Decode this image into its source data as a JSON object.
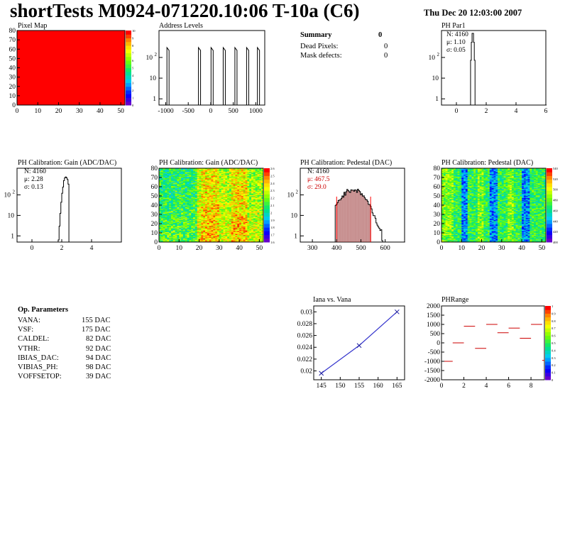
{
  "header": {
    "title": "shortTests M0924-071220.10:06 T-10a (C6)",
    "date": "Thu Dec 20 12:03:00 2007"
  },
  "panels": {
    "pixel_map": {
      "title": "Pixel Map"
    },
    "address_levels": {
      "title": "Address Levels"
    },
    "ph_par1": {
      "title": "PH Par1",
      "stats": [
        "N: 4160",
        "μ: 1.10",
        "σ: 0.05"
      ]
    },
    "gain_hist": {
      "title": "PH Calibration: Gain (ADC/DAC)",
      "stats": [
        "N: 4160",
        "μ: 2.28",
        "σ: 0.13"
      ]
    },
    "gain_map": {
      "title": "PH Calibration: Gain (ADC/DAC)"
    },
    "ped_hist": {
      "title": "PH Calibration: Pedestal (DAC)",
      "stats": [
        "N: 4160",
        "μ: 467.5",
        "σ: 29.0"
      ]
    },
    "ped_map": {
      "title": "PH Calibration: Pedestal (DAC)"
    },
    "iana": {
      "title": "Iana vs. Vana"
    },
    "phrange": {
      "title": "PHRange"
    }
  },
  "summary": {
    "heading": "Summary",
    "total": "0",
    "rows": [
      {
        "label": "Dead Pixels:",
        "value": "0"
      },
      {
        "label": "Mask defects:",
        "value": "0"
      }
    ]
  },
  "op_params": {
    "heading": "Op. Parameters",
    "rows": [
      {
        "name": "VANA:",
        "value": "155 DAC"
      },
      {
        "name": "VSF:",
        "value": "175 DAC"
      },
      {
        "name": "CALDEL:",
        "value": "82 DAC"
      },
      {
        "name": "VTHR:",
        "value": "92 DAC"
      },
      {
        "name": "IBIAS_DAC:",
        "value": "94 DAC"
      },
      {
        "name": "VIBIAS_PH:",
        "value": "98 DAC"
      },
      {
        "name": "VOFFSETOP:",
        "value": "39 DAC"
      }
    ]
  },
  "colors": {
    "red": "#ff0000",
    "navy": "#1a1a9e",
    "blue_line": "#3333cc",
    "ped_fill": "#993333"
  },
  "chart_data": [
    {
      "id": "pixel_map",
      "type": "heatmap",
      "xlim": [
        0,
        52
      ],
      "ylim": [
        0,
        80
      ],
      "xticks": [
        "0",
        "10",
        "20",
        "30",
        "40",
        "50"
      ],
      "yticks": [
        "0",
        "10",
        "20",
        "30",
        "40",
        "50",
        "60",
        "70",
        "80"
      ],
      "zticks": [
        "0",
        "1",
        "2",
        "3",
        "4",
        "5",
        "6",
        "7",
        "8",
        "9",
        "10"
      ],
      "fill": "uniform",
      "zvalue": 10
    },
    {
      "id": "address_levels",
      "type": "bar",
      "xlim": [
        -1150,
        1200
      ],
      "log_y": true,
      "xticks": [
        "-1000",
        "-500",
        "0",
        "500",
        "1000"
      ],
      "yticks": [
        "1",
        "10",
        "10^2"
      ],
      "peaks": [
        -950,
        -250,
        30,
        300,
        560,
        820,
        1060
      ],
      "peak_height": 300
    },
    {
      "id": "ph_par1",
      "type": "bar",
      "xlim": [
        -1,
        6
      ],
      "log_y": true,
      "xticks": [
        "0",
        "2",
        "4",
        "6"
      ],
      "yticks": [
        "1",
        "10",
        "10^2"
      ],
      "mean": 1.1,
      "sigma": 0.05,
      "entries": 4160
    },
    {
      "id": "gain_hist",
      "type": "bar",
      "xlim": [
        -1,
        6
      ],
      "log_y": true,
      "xticks": [
        "0",
        "2",
        "4"
      ],
      "yticks": [
        "1",
        "10",
        "10^2"
      ],
      "mean": 2.28,
      "sigma": 0.13,
      "entries": 4160
    },
    {
      "id": "gain_map",
      "type": "heatmap",
      "xlim": [
        0,
        52
      ],
      "ylim": [
        0,
        80
      ],
      "xticks": [
        "0",
        "10",
        "20",
        "30",
        "40",
        "50"
      ],
      "yticks": [
        "0",
        "10",
        "20",
        "30",
        "40",
        "50",
        "60",
        "70",
        "80"
      ],
      "zticks": [
        "1.6",
        "1.7",
        "1.8",
        "1.9",
        "2",
        "2.1",
        "2.2",
        "2.3",
        "2.4",
        "2.5",
        "2.6"
      ]
    },
    {
      "id": "ped_hist",
      "type": "bar",
      "xlim": [
        250,
        680
      ],
      "log_y": true,
      "xticks": [
        "300",
        "400",
        "500",
        "600"
      ],
      "yticks": [
        "1",
        "10",
        "10^2"
      ],
      "mean": 467.5,
      "sigma": 29.0,
      "entries": 4160,
      "cut_lines": [
        400,
        540
      ]
    },
    {
      "id": "ped_map",
      "type": "heatmap",
      "xlim": [
        0,
        52
      ],
      "ylim": [
        0,
        80
      ],
      "xticks": [
        "0",
        "10",
        "20",
        "30",
        "40",
        "50"
      ],
      "yticks": [
        "0",
        "10",
        "20",
        "30",
        "40",
        "50",
        "60",
        "70",
        "80"
      ],
      "zticks": [
        "400",
        "420",
        "440",
        "460",
        "480",
        "500",
        "520",
        "540"
      ]
    },
    {
      "id": "iana",
      "type": "line",
      "x": [
        145,
        155,
        165
      ],
      "y": [
        0.0196,
        0.0243,
        0.03
      ],
      "xlim": [
        143,
        167
      ],
      "ylim": [
        0.0185,
        0.031
      ],
      "xticks": [
        "145",
        "150",
        "155",
        "160",
        "165"
      ],
      "yticks": [
        "0.02",
        "0.022",
        "0.024",
        "0.026",
        "0.028",
        "0.03"
      ]
    },
    {
      "id": "phrange",
      "type": "scatter",
      "xlim": [
        0,
        9.2
      ],
      "ylim": [
        -2000,
        2000
      ],
      "x": [
        0,
        1,
        2,
        3,
        4,
        5,
        6,
        7,
        8,
        9
      ],
      "y": [
        -1000,
        0,
        900,
        -300,
        1000,
        550,
        800,
        250,
        1000,
        -950
      ],
      "xticks": [
        "0",
        "2",
        "4",
        "6",
        "8"
      ],
      "yticks": [
        "-2000",
        "-1500",
        "-1000",
        "-500",
        "0",
        "500",
        "1000",
        "1500",
        "2000"
      ],
      "zticks": [
        "0",
        "0.1",
        "0.2",
        "0.3",
        "0.4",
        "0.5",
        "0.6",
        "0.7",
        "0.8",
        "0.9",
        "1"
      ]
    }
  ]
}
